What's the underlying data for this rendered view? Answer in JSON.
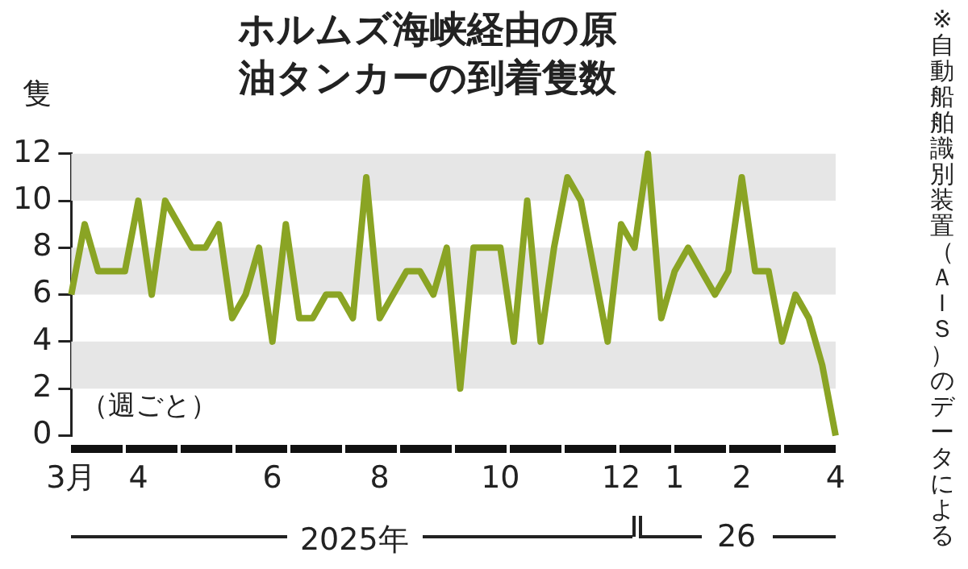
{
  "chart_data": {
    "type": "line",
    "title": "ホルムズ海峡経由の原油タンカーの到着隻数",
    "ylabel": "隻",
    "categories": [
      "3月",
      null,
      null,
      null,
      null,
      "4",
      null,
      null,
      null,
      null,
      null,
      null,
      null,
      null,
      null,
      "6",
      null,
      null,
      null,
      null,
      null,
      null,
      null,
      "8",
      null,
      null,
      null,
      null,
      null,
      null,
      null,
      null,
      "10",
      null,
      null,
      null,
      null,
      null,
      null,
      null,
      null,
      "12",
      null,
      null,
      null,
      "1",
      null,
      null,
      null,
      null,
      "2",
      null,
      null,
      null,
      null,
      null,
      null,
      "4"
    ],
    "series": [
      {
        "color": "#8aa424",
        "values": [
          6,
          9,
          7,
          7,
          7,
          10,
          6,
          10,
          9,
          8,
          8,
          9,
          5,
          6,
          8,
          4,
          9,
          5,
          5,
          6,
          6,
          5,
          11,
          5,
          6,
          7,
          7,
          6,
          8,
          2,
          8,
          8,
          8,
          4,
          10,
          4,
          8,
          11,
          10,
          7,
          4,
          9,
          8,
          12,
          5,
          7,
          8,
          7,
          6,
          7,
          11,
          7,
          7,
          4,
          6,
          5,
          3,
          0
        ]
      }
    ],
    "ylim": [
      0,
      12
    ],
    "yticks": [
      0,
      2,
      4,
      6,
      8,
      10,
      12
    ],
    "grid": false,
    "legend": false,
    "marker": "none",
    "line_style": "solid",
    "bands": [
      {
        "axis": "y",
        "from": 2,
        "to": 4,
        "color": "#e6e6e6"
      },
      {
        "axis": "y",
        "from": 6,
        "to": 8,
        "color": "#e6e6e6"
      },
      {
        "axis": "y",
        "from": 10,
        "to": 12,
        "color": "#e6e6e6"
      }
    ],
    "annotations": [
      "（週ごと）",
      "2025年",
      "26",
      "※自動船舶識別装置（ＡＩＳ）のデータによる"
    ]
  }
}
